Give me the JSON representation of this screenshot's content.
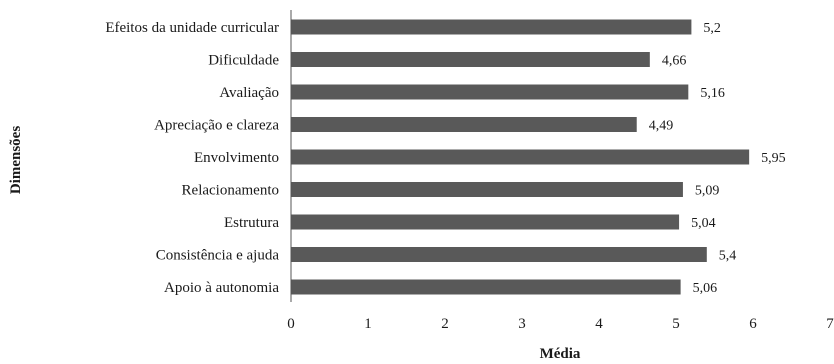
{
  "chart_data": {
    "type": "bar",
    "orientation": "horizontal",
    "categories": [
      "Efeitos da unidade curricular",
      "Dificuldade",
      "Avaliação",
      "Apreciação e clareza",
      "Envolvimento",
      "Relacionamento",
      "Estrutura",
      "Consistência e ajuda",
      "Apoio à autonomia"
    ],
    "values": [
      5.2,
      4.66,
      5.16,
      4.49,
      5.95,
      5.09,
      5.04,
      5.4,
      5.06
    ],
    "value_labels": [
      "5,2",
      "4,66",
      "5,16",
      "4,49",
      "5,95",
      "5,09",
      "5,04",
      "5,4",
      "5,06"
    ],
    "xlabel": "Média",
    "ylabel": "Dimensões",
    "xlim": [
      0,
      7
    ],
    "x_ticks": [
      0,
      1,
      2,
      3,
      4,
      5,
      6,
      7
    ],
    "grid": false,
    "legend": "none",
    "bar_color": "#595959"
  }
}
